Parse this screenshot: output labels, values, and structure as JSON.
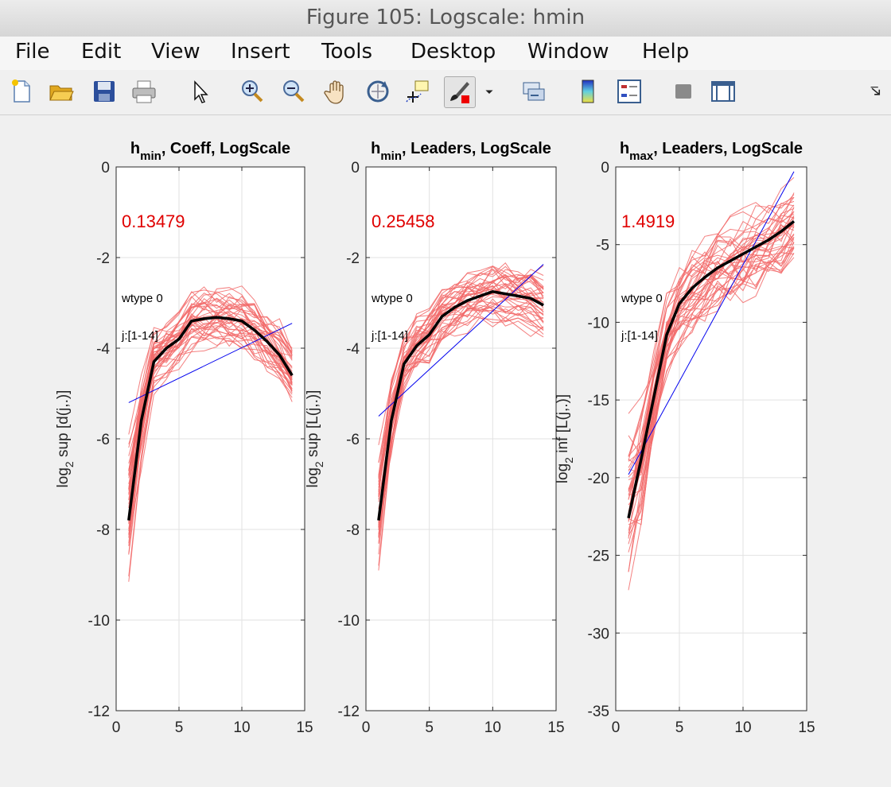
{
  "window": {
    "title": "Figure 105: Logscale: hmin"
  },
  "menu": [
    "File",
    "Edit",
    "View",
    "Insert",
    "Tools",
    "Desktop",
    "Window",
    "Help"
  ],
  "toolbar": {
    "icons": [
      "new-figure-icon",
      "open-file-icon",
      "save-icon",
      "print-icon",
      "select-arrow-icon",
      "zoom-in-icon",
      "zoom-out-icon",
      "pan-hand-icon",
      "rotate-3d-icon",
      "data-cursor-icon",
      "brush-icon",
      "brush-dropdown-icon",
      "link-plot-icon",
      "colorbar-icon",
      "legend-icon",
      "hide-plot-tools-icon",
      "show-plot-tools-icon",
      "dock-icon"
    ]
  },
  "colors": {
    "ensemble": "#f26a6a",
    "mean": "#000000",
    "fit": "#0000ee",
    "estimate_text": "#e00000"
  },
  "chart_data": [
    {
      "type": "line",
      "title_main": "h",
      "title_sub": "min",
      "title_rest": ", Coeff, LogScale",
      "ylabel_pre": "log",
      "ylabel_sub": "2",
      "ylabel_rest": " sup [d(j,.)]",
      "xlim": [
        0,
        15
      ],
      "ylim": [
        -12,
        0
      ],
      "xticks": [
        0,
        5,
        10,
        15
      ],
      "yticks": [
        -12,
        -10,
        -8,
        -6,
        -4,
        -2,
        0
      ],
      "grid": true,
      "estimate": "0.13479",
      "annotations": [
        "wtype 0",
        "j:[1-14]"
      ],
      "x": [
        1,
        2,
        3,
        4,
        5,
        6,
        7,
        8,
        9,
        10,
        11,
        12,
        13,
        14
      ],
      "mean": [
        -7.8,
        -5.6,
        -4.3,
        -4.0,
        -3.8,
        -3.4,
        -3.35,
        -3.32,
        -3.35,
        -3.4,
        -3.6,
        -3.85,
        -4.15,
        -4.6
      ],
      "fit": {
        "x": [
          1,
          14
        ],
        "y": [
          -5.2,
          -3.45
        ]
      },
      "ensemble_spread": 0.55,
      "ensemble_count": 40
    },
    {
      "type": "line",
      "title_main": "h",
      "title_sub": "min",
      "title_rest": ", Leaders, LogScale",
      "ylabel_pre": "log",
      "ylabel_sub": "2",
      "ylabel_rest": " sup [L(j,.)]",
      "xlim": [
        0,
        15
      ],
      "ylim": [
        -12,
        0
      ],
      "xticks": [
        0,
        5,
        10,
        15
      ],
      "yticks": [
        -12,
        -10,
        -8,
        -6,
        -4,
        -2,
        0
      ],
      "grid": true,
      "estimate": "0.25458",
      "annotations": [
        "wtype 0",
        "j:[1-14]"
      ],
      "x": [
        1,
        2,
        3,
        4,
        5,
        6,
        7,
        8,
        9,
        10,
        11,
        12,
        13,
        14
      ],
      "mean": [
        -7.8,
        -5.6,
        -4.35,
        -3.95,
        -3.7,
        -3.3,
        -3.1,
        -2.95,
        -2.85,
        -2.75,
        -2.8,
        -2.85,
        -2.9,
        -3.05
      ],
      "fit": {
        "x": [
          1,
          14
        ],
        "y": [
          -5.5,
          -2.15
        ]
      },
      "ensemble_spread": 0.5,
      "ensemble_count": 40
    },
    {
      "type": "line",
      "title_main": "h",
      "title_sub": "max",
      "title_rest": ", Leaders, LogScale",
      "ylabel_pre": "log",
      "ylabel_sub": "2",
      "ylabel_rest": " inf [L(j,.)]",
      "xlim": [
        0,
        15
      ],
      "ylim": [
        -35,
        0
      ],
      "xticks": [
        0,
        5,
        10,
        15
      ],
      "yticks": [
        -35,
        -30,
        -25,
        -20,
        -15,
        -10,
        -5,
        0
      ],
      "grid": true,
      "estimate": "1.4919",
      "annotations": [
        "wtype 0",
        "j:[1-14]"
      ],
      "x": [
        1,
        2,
        3,
        4,
        5,
        6,
        7,
        8,
        9,
        10,
        11,
        12,
        13,
        14
      ],
      "mean": [
        -22.6,
        -18.8,
        -14.8,
        -10.8,
        -8.8,
        -7.8,
        -7.1,
        -6.5,
        -6.05,
        -5.6,
        -5.15,
        -4.7,
        -4.15,
        -3.5
      ],
      "fit": {
        "x": [
          1,
          14
        ],
        "y": [
          -19.8,
          -0.3
        ]
      },
      "ensemble_spread": 2.2,
      "ensemble_count": 40
    }
  ]
}
